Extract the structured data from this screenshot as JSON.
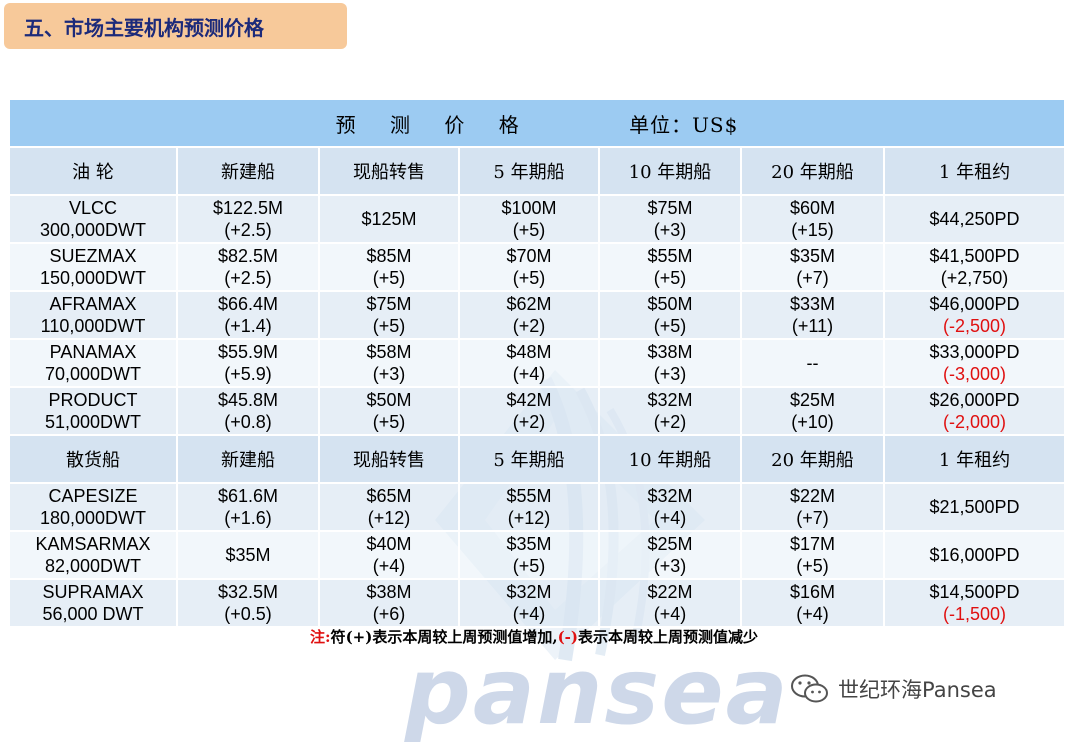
{
  "section_title": "五、市场主要机构预测价格",
  "table": {
    "header_title": "预 测 价 格",
    "header_unit": "单位：US$",
    "tanker_columns": [
      "油 轮",
      "新建船",
      "现船转售",
      "5 年期船",
      "10 年期船",
      "20 年期船",
      "1 年租约"
    ],
    "tanker_rows": [
      {
        "name": [
          "VLCC",
          "300,000DWT"
        ],
        "cells": [
          [
            "$122.5M",
            "(+2.5)"
          ],
          [
            "$125M"
          ],
          [
            "$100M",
            "(+5)"
          ],
          [
            "$75M",
            "(+3)"
          ],
          [
            "$60M",
            "(+15)"
          ],
          [
            "$44,250PD"
          ]
        ]
      },
      {
        "name": [
          "SUEZMAX",
          "150,000DWT"
        ],
        "cells": [
          [
            "$82.5M",
            "(+2.5)"
          ],
          [
            "$85M",
            "(+5)"
          ],
          [
            "$70M",
            "(+5)"
          ],
          [
            "$55M",
            "(+5)"
          ],
          [
            "$35M",
            "(+7)"
          ],
          [
            "$41,500PD",
            "(+2,750)"
          ]
        ]
      },
      {
        "name": [
          "AFRAMAX",
          "110,000DWT"
        ],
        "cells": [
          [
            "$66.4M",
            "(+1.4)"
          ],
          [
            "$75M",
            "(+5)"
          ],
          [
            "$62M",
            "(+2)"
          ],
          [
            "$50M",
            "(+5)"
          ],
          [
            "$33M",
            "(+11)"
          ],
          [
            "$46,000PD",
            "(-2,500)"
          ]
        ]
      },
      {
        "name": [
          "PANAMAX",
          "70,000DWT"
        ],
        "cells": [
          [
            "$55.9M",
            "(+5.9)"
          ],
          [
            "$58M",
            "(+3)"
          ],
          [
            "$48M",
            "(+4)"
          ],
          [
            "$38M",
            "(+3)"
          ],
          [
            "--"
          ],
          [
            "$33,000PD",
            "(-3,000)"
          ]
        ]
      },
      {
        "name": [
          "PRODUCT",
          "51,000DWT"
        ],
        "cells": [
          [
            "$45.8M",
            "(+0.8)"
          ],
          [
            "$50M",
            "(+5)"
          ],
          [
            "$42M",
            "(+2)"
          ],
          [
            "$32M",
            "(+2)"
          ],
          [
            "$25M",
            "(+10)"
          ],
          [
            "$26,000PD",
            "(-2,000)"
          ]
        ]
      }
    ],
    "bulk_columns": [
      "散货船",
      "新建船",
      "现船转售",
      "5 年期船",
      "10 年期船",
      "20 年期船",
      "1 年租约"
    ],
    "bulk_rows": [
      {
        "name": [
          "CAPESIZE",
          "180,000DWT"
        ],
        "cells": [
          [
            "$61.6M",
            "(+1.6)"
          ],
          [
            "$65M",
            "(+12)"
          ],
          [
            "$55M",
            "(+12)"
          ],
          [
            "$32M",
            "(+4)"
          ],
          [
            "$22M",
            "(+7)"
          ],
          [
            "$21,500PD"
          ]
        ]
      },
      {
        "name": [
          "KAMSARMAX",
          "82,000DWT"
        ],
        "cells": [
          [
            "$35M"
          ],
          [
            "$40M",
            "(+4)"
          ],
          [
            "$35M",
            "(+5)"
          ],
          [
            "$25M",
            "(+3)"
          ],
          [
            "$17M",
            "(+5)"
          ],
          [
            "$16,000PD"
          ]
        ]
      },
      {
        "name": [
          "SUPRAMAX",
          "56,000 DWT"
        ],
        "cells": [
          [
            "$32.5M",
            "(+0.5)"
          ],
          [
            "$38M",
            "(+6)"
          ],
          [
            "$32M",
            "(+4)"
          ],
          [
            "$22M",
            "(+4)"
          ],
          [
            "$16M",
            "(+4)"
          ],
          [
            "$14,500PD",
            "(-1,500)"
          ]
        ]
      }
    ]
  },
  "note": {
    "label": "注:",
    "part1": "符",
    "plus": "(+)",
    "part2": "表示本周较上周预测值增加,",
    "minus": "(-)",
    "part3": "表示本周较上周预测值减少"
  },
  "watermark_text": "pansea",
  "brand": {
    "label": "世纪环海Pansea",
    "icon": "wechat-icon"
  },
  "colors": {
    "header_bg": "#9ccbf2",
    "row_bg": "#d5e3f1",
    "title_bg": "#f7c99a",
    "negative": "#e01010",
    "title_text": "#1c2a7a"
  }
}
